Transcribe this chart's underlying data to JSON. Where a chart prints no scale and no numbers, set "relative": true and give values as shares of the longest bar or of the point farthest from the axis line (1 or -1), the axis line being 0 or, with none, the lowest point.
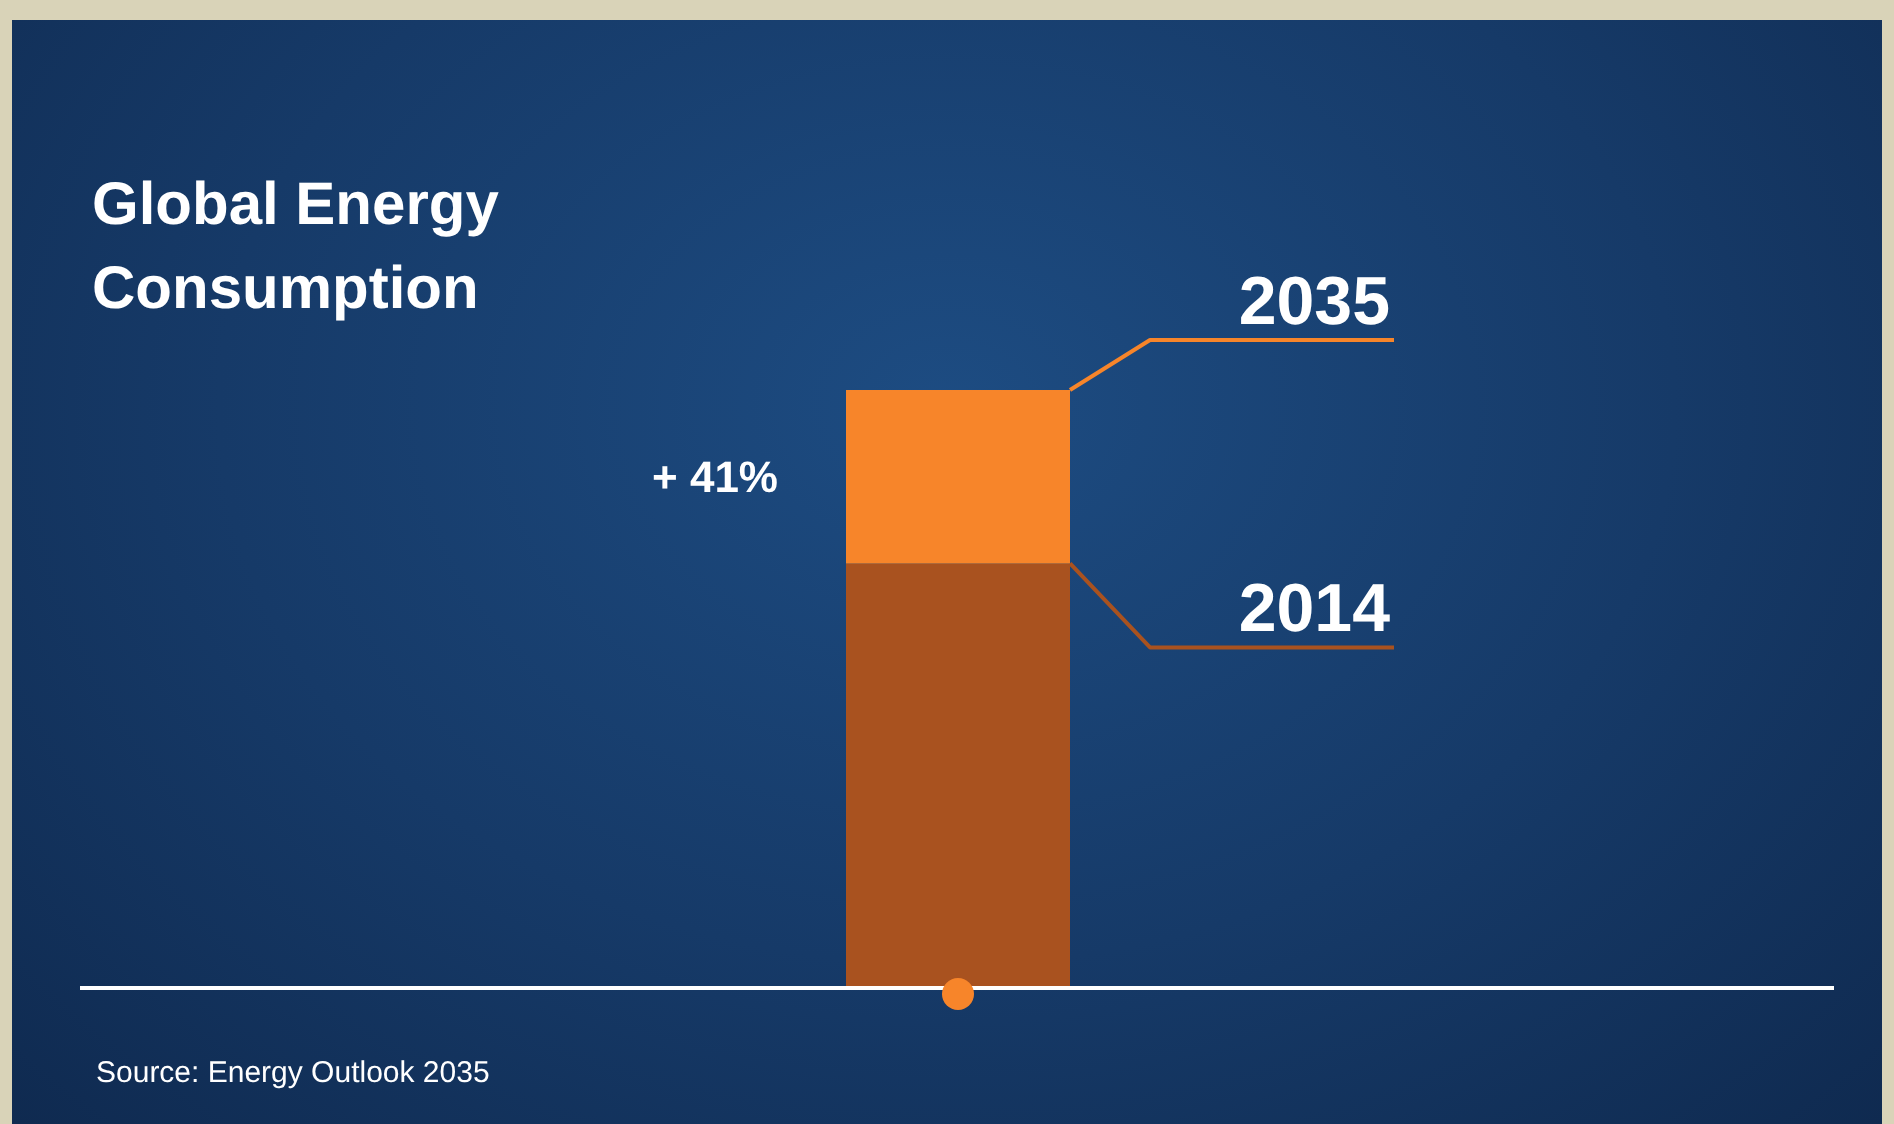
{
  "chart_data": {
    "type": "bar",
    "title": "Global Energy\nConsumption",
    "categories": [
      null
    ],
    "stacked": true,
    "relative": true,
    "series": [
      {
        "name": "2014",
        "color": "#a9521f",
        "values": [
          0.71
        ]
      },
      {
        "name": "2035",
        "color": "#f7852a",
        "values": [
          0.29
        ]
      }
    ],
    "annotations": [
      "+ 41%",
      "Source: Energy Outlook 2035"
    ]
  }
}
